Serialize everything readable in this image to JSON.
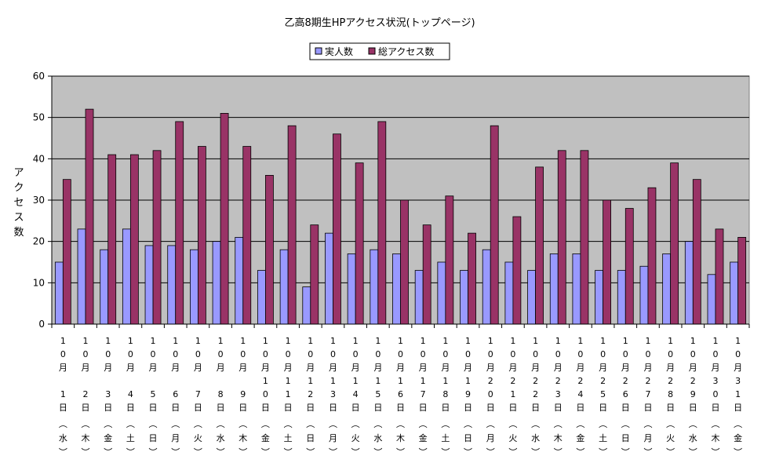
{
  "chart_data": {
    "type": "bar",
    "title": "乙高8期生HPアクセス状況(トップページ)",
    "ylabel": "アクセス数",
    "xlabel": "",
    "ylim": [
      0,
      60
    ],
    "yticks": [
      0,
      10,
      20,
      30,
      40,
      50,
      60
    ],
    "grid": true,
    "legend_position": "top",
    "plot_background": "#c0c0c0",
    "categories": [
      "10月1日(水)",
      "10月2日(木)",
      "10月3日(金)",
      "10月4日(土)",
      "10月5日(日)",
      "10月6日(月)",
      "10月7日(火)",
      "10月8日(水)",
      "10月9日(木)",
      "10月10日(金)",
      "10月11日(土)",
      "10月12日(日)",
      "10月13日(月)",
      "10月14日(火)",
      "10月15日(水)",
      "10月16日(木)",
      "10月17日(金)",
      "10月18日(土)",
      "10月19日(日)",
      "10月20日(月)",
      "10月21日(火)",
      "10月22日(水)",
      "10月23日(木)",
      "10月24日(金)",
      "10月25日(土)",
      "10月26日(日)",
      "10月27日(月)",
      "10月28日(火)",
      "10月29日(水)",
      "10月30日(木)",
      "10月31日(金)"
    ],
    "cat_month": [
      "10",
      "10",
      "10",
      "10",
      "10",
      "10",
      "10",
      "10",
      "10",
      "10",
      "10",
      "10",
      "10",
      "10",
      "10",
      "10",
      "10",
      "10",
      "10",
      "10",
      "10",
      "10",
      "10",
      "10",
      "10",
      "10",
      "10",
      "10",
      "10",
      "10",
      "10"
    ],
    "cat_day": [
      "1",
      "2",
      "3",
      "4",
      "5",
      "6",
      "7",
      "8",
      "9",
      "10",
      "11",
      "12",
      "13",
      "14",
      "15",
      "16",
      "17",
      "18",
      "19",
      "20",
      "21",
      "22",
      "23",
      "24",
      "25",
      "26",
      "27",
      "28",
      "29",
      "30",
      "31"
    ],
    "cat_weekday": [
      "水",
      "木",
      "金",
      "土",
      "日",
      "月",
      "火",
      "水",
      "木",
      "金",
      "土",
      "日",
      "月",
      "火",
      "水",
      "木",
      "金",
      "土",
      "日",
      "月",
      "火",
      "水",
      "木",
      "金",
      "土",
      "日",
      "月",
      "火",
      "水",
      "木",
      "金"
    ],
    "series": [
      {
        "name": "実人数",
        "color": "#9999ff",
        "values": [
          15,
          23,
          18,
          23,
          19,
          19,
          18,
          20,
          21,
          13,
          18,
          9,
          22,
          17,
          18,
          17,
          13,
          15,
          13,
          18,
          15,
          13,
          17,
          17,
          13,
          13,
          14,
          17,
          20,
          12,
          15
        ]
      },
      {
        "name": "総アクセス数",
        "color": "#993366",
        "values": [
          35,
          52,
          41,
          41,
          42,
          49,
          43,
          51,
          43,
          36,
          48,
          24,
          46,
          39,
          49,
          30,
          24,
          31,
          22,
          48,
          26,
          38,
          42,
          42,
          30,
          28,
          33,
          39,
          35,
          23,
          21
        ]
      }
    ]
  },
  "labels": {
    "month_char": "月",
    "day_char": "日",
    "open_paren": "︵",
    "close_paren": "︶"
  }
}
